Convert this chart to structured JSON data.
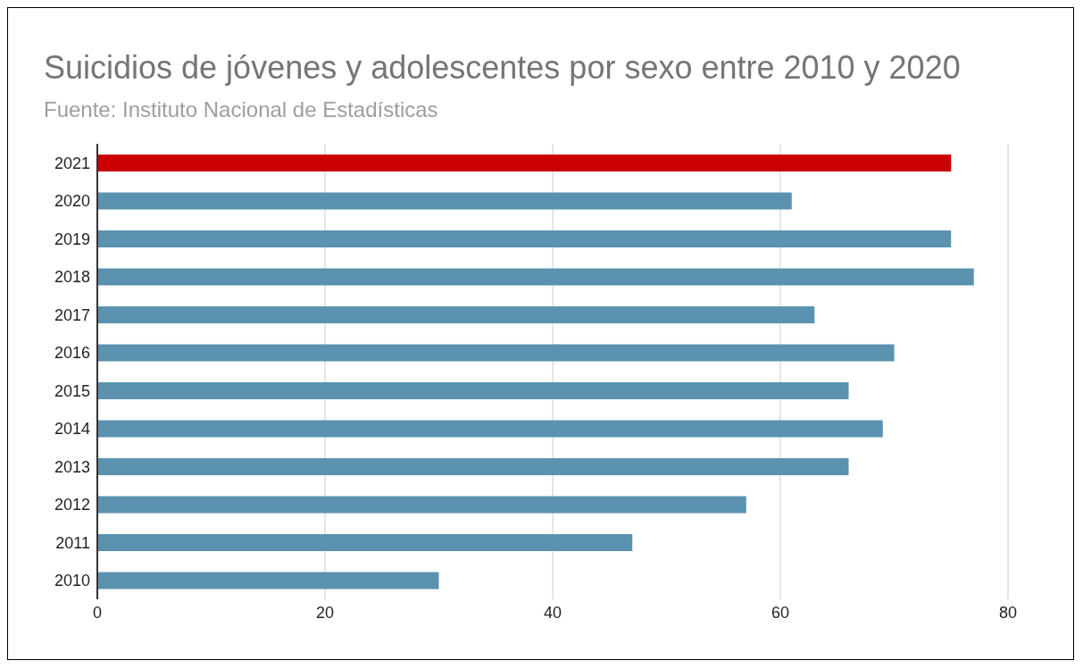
{
  "chart_data": {
    "type": "bar",
    "orientation": "horizontal",
    "title": "Suicidios de jóvenes y adolescentes por sexo entre 2010 y 2020",
    "subtitle": "Fuente:  Instituto Nacional de Estadísticas",
    "categories": [
      "2021",
      "2020",
      "2019",
      "2018",
      "2017",
      "2016",
      "2015",
      "2014",
      "2013",
      "2012",
      "2011",
      "2010"
    ],
    "values": [
      75,
      61,
      75,
      77,
      63,
      70,
      66,
      69,
      66,
      57,
      47,
      30
    ],
    "colors": [
      "#cc0000",
      "#5a92b0",
      "#5a92b0",
      "#5a92b0",
      "#5a92b0",
      "#5a92b0",
      "#5a92b0",
      "#5a92b0",
      "#5a92b0",
      "#5a92b0",
      "#5a92b0",
      "#5a92b0"
    ],
    "xlim": [
      0,
      80
    ],
    "xticks": [
      0,
      20,
      40,
      60,
      80
    ],
    "grid": "x"
  }
}
